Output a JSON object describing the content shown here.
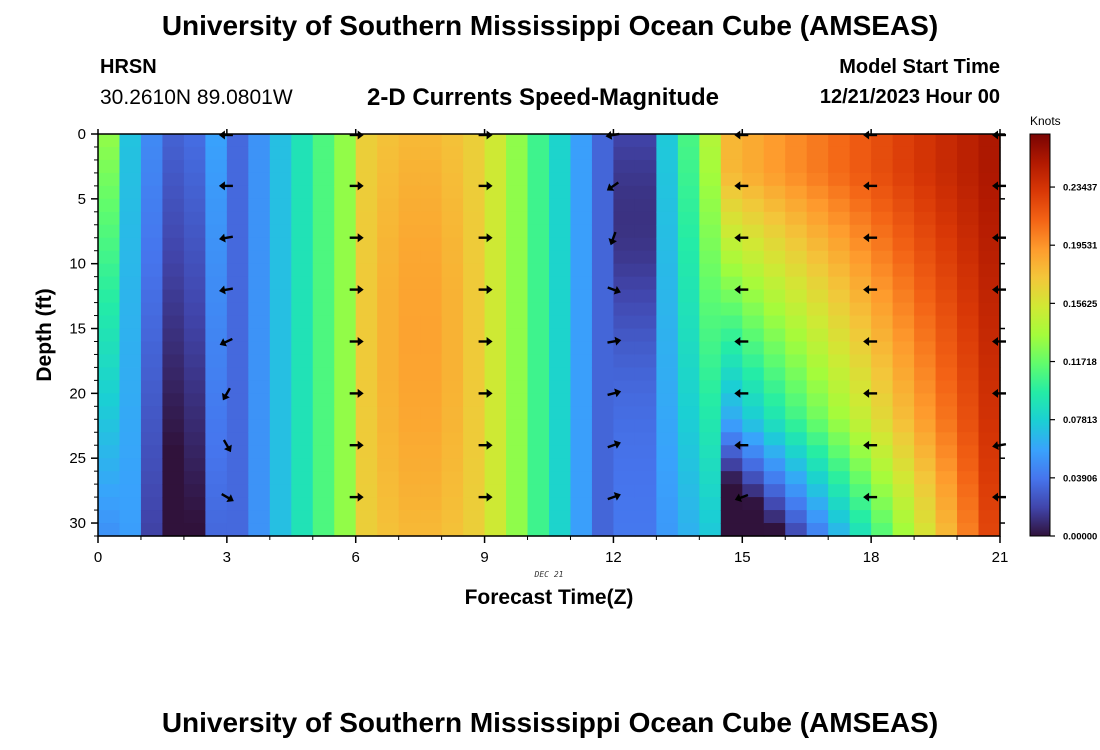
{
  "header": {
    "title": "University of Southern Mississippi Ocean Cube (AMSEAS)",
    "station": "HRSN",
    "coords": "30.2610N  89.0801W",
    "subtitle": "2-D Currents Speed-Magnitude",
    "model_start_label": "Model Start Time",
    "model_start_time": "12/21/2023 Hour 00"
  },
  "footer": {
    "title": "University of Southern Mississippi Ocean Cube (AMSEAS)"
  },
  "chart_data": {
    "type": "heatmap",
    "title": "2-D Currents Speed-Magnitude",
    "xlabel": "Forecast Time(Z)",
    "ylabel": "Depth (ft)",
    "date_label": "DEC 21",
    "xlim": [
      0,
      21
    ],
    "ylim": [
      31,
      0
    ],
    "x_ticks": [
      0,
      3,
      6,
      9,
      12,
      15,
      18,
      21
    ],
    "y_ticks": [
      0,
      5,
      10,
      15,
      20,
      25,
      30
    ],
    "colorbar": {
      "label": "Knots",
      "range": [
        0,
        0.27
      ],
      "ticks": [
        "0.00000",
        "0.03906",
        "0.07813",
        "0.11718",
        "0.15625",
        "0.19531",
        "0.23437"
      ],
      "tick_values": [
        0.0,
        0.03906,
        0.07813,
        0.11718,
        0.15625,
        0.19531,
        0.23437
      ],
      "colors": [
        "#30123b",
        "#4145ab",
        "#4675ed",
        "#39a2fc",
        "#1bcfd4",
        "#24eca6",
        "#61fc6c",
        "#a4fc3b",
        "#d1e834",
        "#f3c63a",
        "#fe9b2d",
        "#f36315",
        "#d93806",
        "#b11901",
        "#7a0403"
      ]
    },
    "arrow_times": [
      3,
      6,
      9,
      12,
      15,
      18,
      21
    ],
    "arrow_depths": [
      0,
      4,
      8,
      12,
      16,
      20,
      24,
      28
    ],
    "arrow_angles_deg": [
      [
        180,
        0,
        0,
        190,
        180,
        180,
        180
      ],
      [
        180,
        0,
        0,
        215,
        180,
        180,
        180
      ],
      [
        190,
        0,
        0,
        250,
        180,
        180,
        180
      ],
      [
        190,
        0,
        0,
        340,
        180,
        180,
        180
      ],
      [
        205,
        0,
        0,
        10,
        180,
        180,
        180
      ],
      [
        240,
        0,
        0,
        15,
        180,
        180,
        180
      ],
      [
        300,
        0,
        0,
        20,
        180,
        180,
        190
      ],
      [
        330,
        0,
        0,
        20,
        200,
        180,
        180
      ]
    ]
  }
}
